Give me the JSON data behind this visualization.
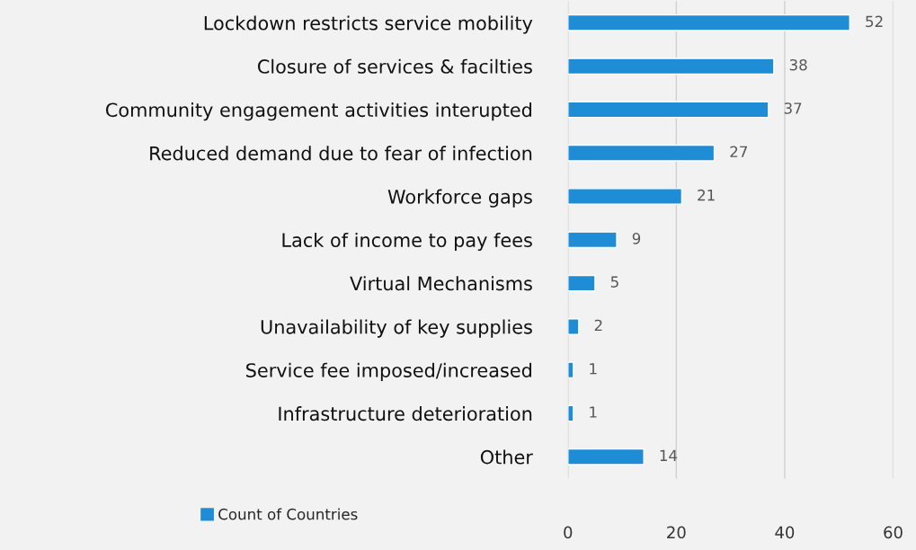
{
  "chart_data": {
    "type": "bar",
    "orientation": "horizontal",
    "categories": [
      "Lockdown restricts service mobility",
      "Closure of services & facilties",
      "Community engagement activities interupted",
      "Reduced demand due to fear of infection",
      "Workforce gaps",
      "Lack of income to pay fees",
      "Virtual Mechanisms",
      "Unavailability of key supplies",
      "Service fee imposed/increased",
      "Infrastructure deterioration",
      "Other"
    ],
    "series": [
      {
        "name": "Count of Countries",
        "color": "#1f8dd6",
        "values": [
          52,
          38,
          37,
          27,
          21,
          9,
          5,
          2,
          1,
          1,
          14
        ]
      }
    ],
    "xlim": [
      0,
      60
    ],
    "xticks": [
      0,
      20,
      40,
      60
    ],
    "grid": "x",
    "legend": "bottom left",
    "data_labels": true
  }
}
